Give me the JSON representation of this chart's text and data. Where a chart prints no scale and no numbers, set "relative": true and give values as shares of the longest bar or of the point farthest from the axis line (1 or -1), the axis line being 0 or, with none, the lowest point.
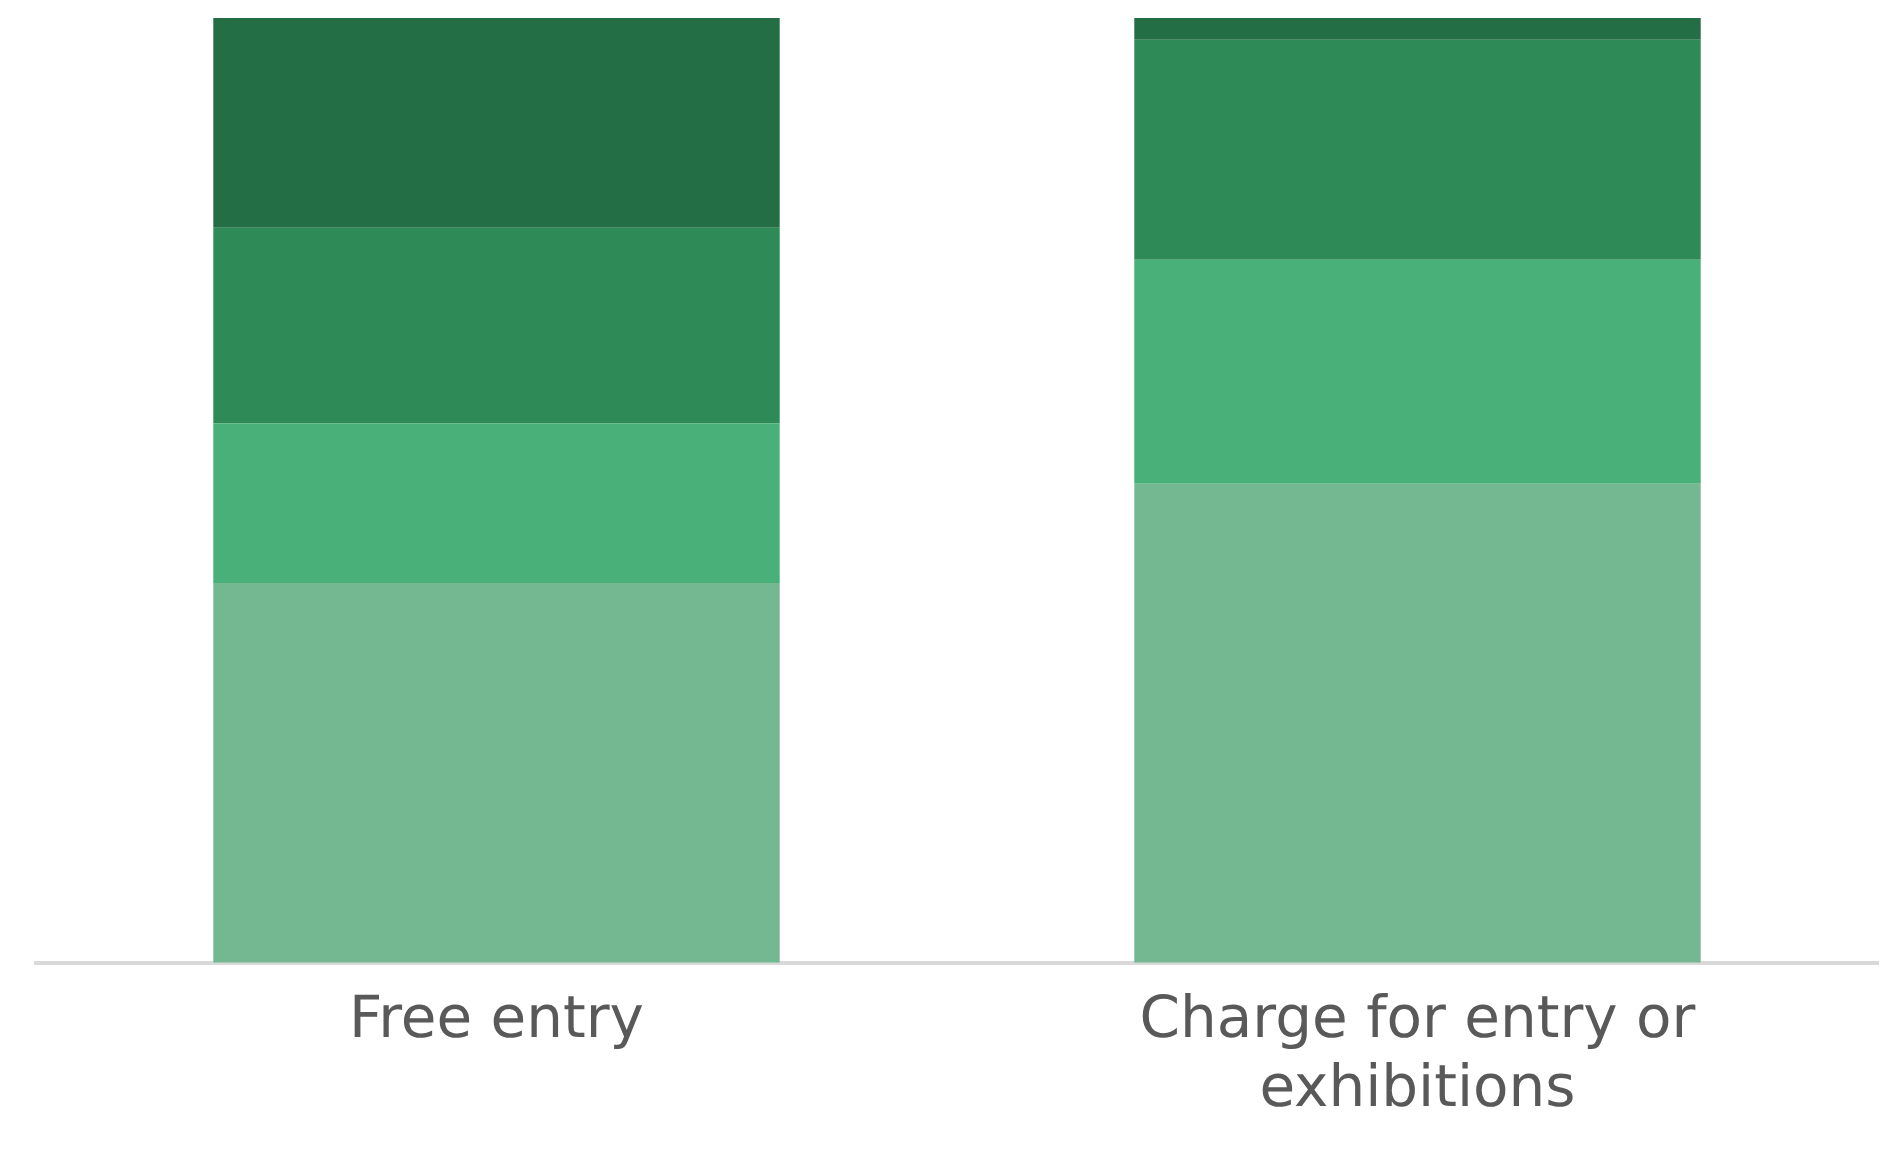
{
  "chart_data": {
    "type": "bar",
    "stacked": true,
    "relative": true,
    "categories": [
      "Free entry",
      "Charge for entry or exhibitions"
    ],
    "series": [
      {
        "color": "#74b892",
        "values": [
          0.402,
          0.507
        ]
      },
      {
        "color": "#48b078",
        "values": [
          0.169,
          0.237
        ]
      },
      {
        "color": "#2e8b57",
        "values": [
          0.207,
          0.233
        ]
      },
      {
        "color": "#246e45",
        "values": [
          0.222,
          0.023
        ]
      }
    ],
    "grid": false,
    "legend": false
  }
}
